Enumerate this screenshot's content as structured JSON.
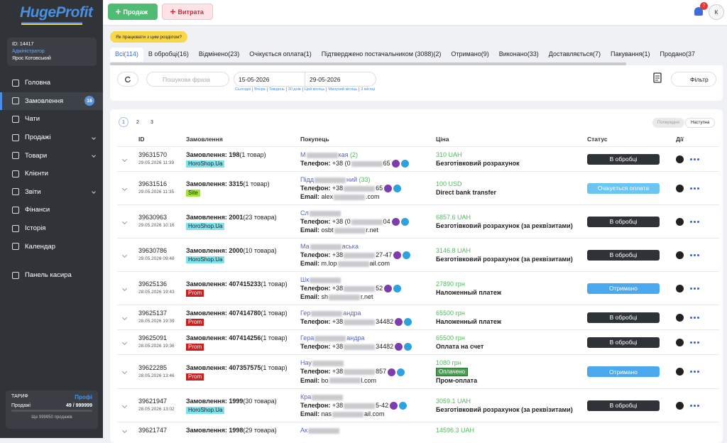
{
  "sidebar": {
    "logo": "HugeProfit",
    "account_id": "ID: 14417",
    "role": "Адміністратор",
    "user": "Ярос Котовський",
    "menu": [
      {
        "label": "Головна"
      },
      {
        "label": "Замовлення",
        "badge": "16",
        "active": true
      },
      {
        "label": "Чати"
      },
      {
        "label": "Продажі",
        "expandable": true
      },
      {
        "label": "Товари",
        "expandable": true
      },
      {
        "label": "Клієнти"
      },
      {
        "label": "Звіти",
        "expandable": true
      },
      {
        "label": "Фінанси"
      },
      {
        "label": "Історія"
      },
      {
        "label": "Календар"
      },
      {
        "label": "Панель касира",
        "separated": true
      }
    ],
    "tariff": {
      "title": "ТАРИФ",
      "plan": "Профі",
      "sales_label": "Продажі",
      "sales_value": "49 / 999999",
      "remaining": "Ще 999950 продажів"
    }
  },
  "topbar": {
    "sale_button": "Продаж",
    "expense_button": "Витрата",
    "notifications": "7",
    "avatar": "К"
  },
  "help_link": "Як працювати з цим розділом?",
  "tabs": [
    "Всі(114)",
    "В обробці(16)",
    "Відмінено(23)",
    "Очікується оплата(1)",
    "Підтверджено постачальником (3088)(2)",
    "Отримано(9)",
    "Виконано(33)",
    "Доставляється(7)",
    "Пакування(1)",
    "Продано(37"
  ],
  "filters": {
    "search_placeholder": "Пошукова фраза",
    "date_from": "15-05-2026",
    "date_to": "29-05-2026",
    "quick_ranges": [
      "Сьогодні",
      "Вчора",
      "Тиждень",
      "30 днів",
      "Цей місяць",
      "Минулий місяць",
      "3 місяці"
    ],
    "filter_button": "Фільтр"
  },
  "pagination": {
    "pages": [
      "1",
      "2",
      "3"
    ],
    "previous": "Попередня",
    "next": "Наступна"
  },
  "table": {
    "headers": [
      "ID",
      "Замовлення",
      "Покупець",
      "Ціна",
      "Статус",
      "Дії"
    ],
    "order_label": "Замовлення:",
    "phone_label": "Телефон:",
    "email_label": "Email:",
    "rows": [
      {
        "id": "39631570",
        "date": "29.05.2026 11:39",
        "order": "198",
        "items": "(1 товар)",
        "source": "HoroShop.Ua",
        "source_color": "#7fe3ee",
        "name": [
          "М",
          "кая"
        ],
        "orders": "(2)",
        "phone": [
          "+38 (0",
          "65"
        ],
        "price": "310 UAH",
        "payment": "Безготівковий розрахунок",
        "status": "В обробці",
        "status_color": "#2f3237"
      },
      {
        "id": "39631516",
        "date": "29.05.2026 11:35",
        "order": "3315",
        "items": "(1 товар)",
        "source": "Site",
        "source_color": "#a4e23a",
        "name": [
          "Підд",
          "ний"
        ],
        "orders": "(33)",
        "phone": [
          "+38",
          "65"
        ],
        "email": [
          "alex",
          ".com"
        ],
        "price": "100 USD",
        "payment": "Direct bank transfer",
        "status": "Очікується оплата",
        "status_color": "#6cc4f0"
      },
      {
        "id": "39630963",
        "date": "29.05.2026 10:16",
        "order": "2001",
        "items": "(23 товара)",
        "source": "HoroShop.Ua",
        "source_color": "#7fe3ee",
        "name": [
          "Сл"
        ],
        "phone": [
          "+38 (0",
          "04"
        ],
        "email": [
          "osbt",
          "r.net"
        ],
        "price": "6857.6 UAH",
        "payment": "Безготівковий розрахунок (за реквізитами)",
        "status": "В обробці",
        "status_color": "#2f3237"
      },
      {
        "id": "39630786",
        "date": "29.05.2026 09:48",
        "order": "2000",
        "items": "(10 товара)",
        "source": "HoroShop.Ua",
        "source_color": "#7fe3ee",
        "name": [
          "Ма",
          "аська"
        ],
        "phone": [
          "+38",
          "27-47"
        ],
        "email": [
          "m.lop",
          "ail.com"
        ],
        "price": "3146.8 UAH",
        "payment": "Безготівковий розрахунок (за реквізитами)",
        "status": "В обробці",
        "status_color": "#2f3237"
      },
      {
        "id": "39625136",
        "date": "28.05.2026 19:43",
        "order": "407415233",
        "items": "(1 товар)",
        "source": "Prom",
        "source_color": "#c8201e",
        "name": [
          "Шк"
        ],
        "phone": [
          "+38",
          "52"
        ],
        "email": [
          "sh",
          "r.net"
        ],
        "price": "27890 грн",
        "payment": "Наложенный платеж",
        "status": "Отримано",
        "status_color": "#4aa9ee"
      },
      {
        "id": "39625137",
        "date": "28.05.2026 19:39",
        "order": "407414780",
        "items": "(1 товар)",
        "source": "Prom",
        "source_color": "#c8201e",
        "name": [
          "Гер",
          "андра"
        ],
        "phone": [
          "+38",
          "34482"
        ],
        "price": "65500 грн",
        "payment": "Наложенный платеж",
        "status": "В обробці",
        "status_color": "#2f3237"
      },
      {
        "id": "39625091",
        "date": "28.05.2026 19:36",
        "order": "407414256",
        "items": "(1 товар)",
        "source": "Prom",
        "source_color": "#c8201e",
        "name": [
          "Гера",
          "андра"
        ],
        "phone": [
          "+38",
          "34482"
        ],
        "price": "65500 грн",
        "payment": "Оплата на счет",
        "status": "В обробці",
        "status_color": "#2f3237"
      },
      {
        "id": "39622285",
        "date": "28.05.2026 13:46",
        "order": "407357575",
        "items": "(1 товар)",
        "source": "Prom",
        "source_color": "#c8201e",
        "name": [
          "Нау"
        ],
        "phone": [
          "+38",
          "857"
        ],
        "email": [
          "bo",
          "l.com"
        ],
        "price": "1080 грн",
        "paid": "Оплачено",
        "payment": "Пром-оплата",
        "status": "Отримано",
        "status_color": "#4aa9ee"
      },
      {
        "id": "39621947",
        "date": "28.05.2026 13:02",
        "order": "1999",
        "items": "(30 товара)",
        "source": "HoroShop.Ua",
        "source_color": "#7fe3ee",
        "name": [
          "Кра"
        ],
        "phone": [
          "+38",
          "5-42"
        ],
        "email": [
          "nas",
          "ail.com"
        ],
        "price": "3059.1 UAH",
        "payment": "Безготівковий розрахунок (за реквізитами)",
        "status": "В обробці",
        "status_color": "#2f3237"
      },
      {
        "id": "39621747",
        "order": "1998",
        "items": "(29 товара)",
        "name": [
          "Ак"
        ],
        "price": "14596.3 UAH"
      }
    ]
  }
}
